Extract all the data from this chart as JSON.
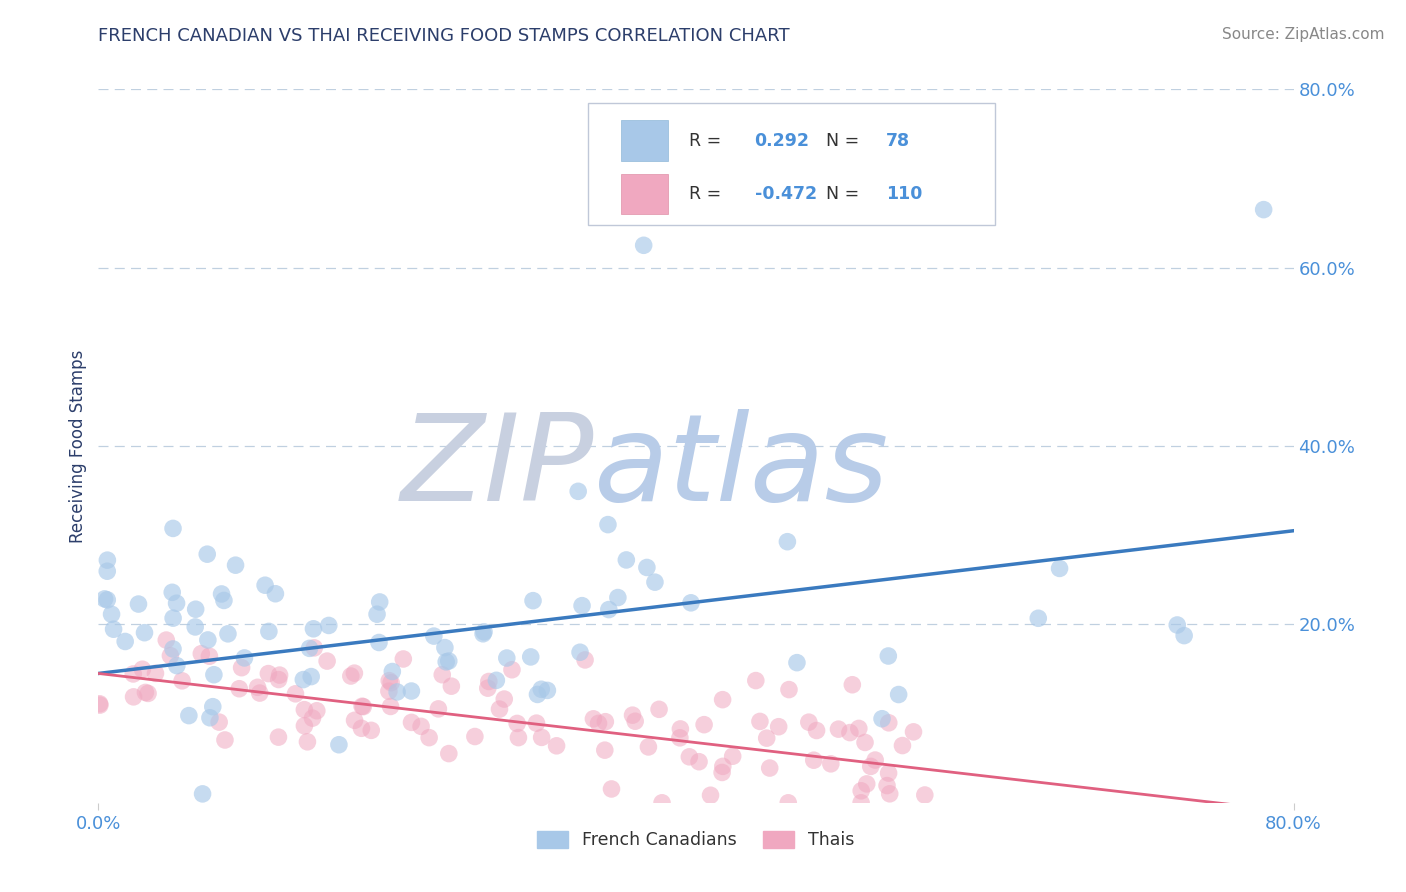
{
  "title": "FRENCH CANADIAN VS THAI RECEIVING FOOD STAMPS CORRELATION CHART",
  "source": "Source: ZipAtlas.com",
  "ylabel": "Receiving Food Stamps",
  "xlim": [
    0.0,
    0.8
  ],
  "ylim": [
    0.0,
    0.8
  ],
  "blue_color": "#a8c8e8",
  "blue_edge_color": "#a8c8e8",
  "pink_color": "#f0a8c0",
  "pink_edge_color": "#f0a8c0",
  "blue_line_color": "#3a7abf",
  "pink_line_color": "#e06080",
  "title_color": "#2c3e6b",
  "axis_label_color": "#2c3e6b",
  "tick_label_color": "#4a90d9",
  "watermark_ZIP_color": "#c8d0e0",
  "watermark_atlas_color": "#b8cce8",
  "background_color": "#ffffff",
  "grid_color": "#c0d0e0",
  "legend_R_color": "#4a90d9",
  "legend_text_color": "#333333",
  "source_color": "#888888",
  "blue_R": 0.292,
  "blue_N": 78,
  "pink_R": -0.472,
  "pink_N": 110,
  "blue_line_start_y": 0.145,
  "blue_line_end_y": 0.305,
  "pink_line_start_y": 0.145,
  "pink_line_end_y": -0.01
}
